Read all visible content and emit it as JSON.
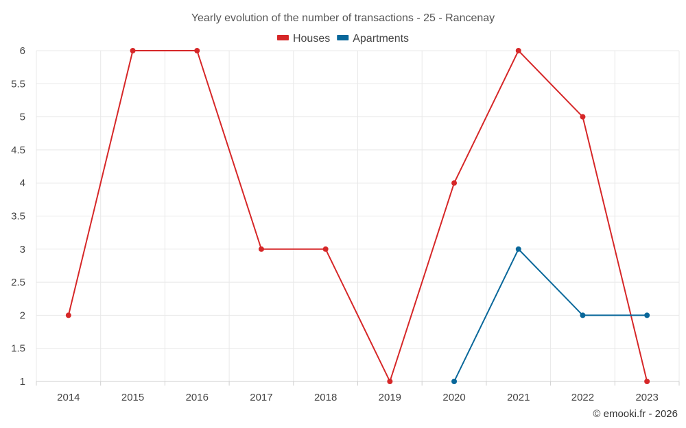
{
  "chart_data": {
    "type": "line",
    "title": "Yearly evolution of the number of transactions - 25 - Rancenay",
    "categories": [
      "2014",
      "2015",
      "2016",
      "2017",
      "2018",
      "2019",
      "2020",
      "2021",
      "2022",
      "2023"
    ],
    "series": [
      {
        "name": "Houses",
        "color": "#d62728",
        "values": [
          2,
          6,
          6,
          3,
          3,
          1,
          4,
          6,
          5,
          1
        ]
      },
      {
        "name": "Apartments",
        "color": "#08679a",
        "values": [
          null,
          null,
          null,
          null,
          null,
          null,
          1,
          3,
          2,
          2
        ]
      }
    ],
    "ylim": [
      1,
      6
    ],
    "yticks": [
      "1",
      "1.5",
      "2",
      "2.5",
      "3",
      "3.5",
      "4",
      "4.5",
      "5",
      "5.5",
      "6"
    ],
    "grid": true,
    "legend": "top-center",
    "xlabel": "",
    "ylabel": ""
  },
  "credit": "© emooki.fr - 2026"
}
